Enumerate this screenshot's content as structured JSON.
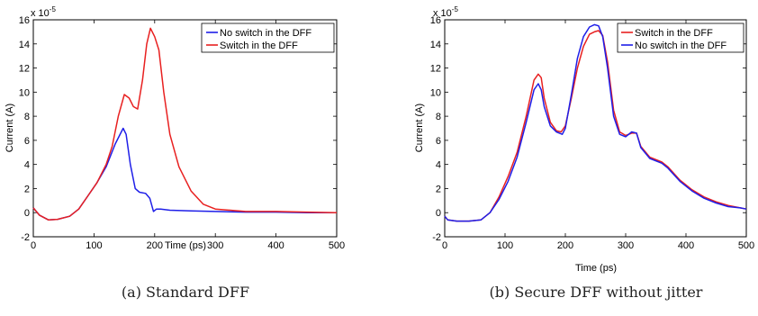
{
  "captions": [
    "(a) Standard DFF",
    "(b) Secure DFF without jitter"
  ],
  "chart_data": [
    {
      "type": "line",
      "xlabel": "Time (ps)",
      "ylabel": "Current (A)",
      "y_exponent": {
        "base": "x 10",
        "power": "-5"
      },
      "xlim": [
        0,
        500
      ],
      "ylim": [
        -2,
        16
      ],
      "xticks": [
        "0",
        "100",
        "200",
        "300",
        "400",
        "500"
      ],
      "yticks": [
        "-2",
        "0",
        "2",
        "4",
        "6",
        "8",
        "10",
        "12",
        "14",
        "16"
      ],
      "grid": false,
      "legend_position": "top-right",
      "series": [
        {
          "name": "No switch in the DFF",
          "color": "#1f1fe8",
          "x": [
            0,
            10,
            25,
            40,
            60,
            75,
            90,
            105,
            120,
            135,
            148,
            153,
            160,
            168,
            175,
            185,
            192,
            198,
            203,
            210,
            225,
            260,
            300,
            350,
            400,
            450,
            500
          ],
          "y": [
            0.4,
            -0.2,
            -0.6,
            -0.55,
            -0.3,
            0.3,
            1.4,
            2.5,
            3.8,
            5.7,
            7.0,
            6.5,
            4.0,
            2.0,
            1.7,
            1.6,
            1.2,
            0.1,
            0.3,
            0.3,
            0.2,
            0.15,
            0.1,
            0.05,
            0.05,
            0.0,
            0.0
          ]
        },
        {
          "name": "Switch in the DFF",
          "color": "#e82020",
          "x": [
            0,
            10,
            25,
            40,
            60,
            75,
            90,
            105,
            120,
            130,
            140,
            150,
            158,
            165,
            172,
            180,
            187,
            193,
            200,
            207,
            215,
            225,
            240,
            260,
            280,
            300,
            350,
            400,
            450,
            500
          ],
          "y": [
            0.4,
            -0.2,
            -0.6,
            -0.55,
            -0.3,
            0.3,
            1.4,
            2.5,
            4.0,
            5.5,
            8.0,
            9.8,
            9.5,
            8.8,
            8.6,
            11.0,
            14.0,
            15.3,
            14.6,
            13.5,
            10.0,
            6.5,
            3.8,
            1.8,
            0.7,
            0.3,
            0.1,
            0.1,
            0.05,
            0.0
          ]
        }
      ]
    },
    {
      "type": "line",
      "xlabel": "Time (ps)",
      "ylabel": "Current (A)",
      "y_exponent": {
        "base": "x 10",
        "power": "-5"
      },
      "xlim": [
        0,
        500
      ],
      "ylim": [
        -2,
        16
      ],
      "xticks": [
        "0",
        "100",
        "200",
        "300",
        "400",
        "500"
      ],
      "yticks": [
        "-2",
        "0",
        "2",
        "4",
        "6",
        "8",
        "10",
        "12",
        "14",
        "16"
      ],
      "grid": false,
      "legend_position": "top-right",
      "series": [
        {
          "name": "Switch in the DFF",
          "color": "#e82020",
          "x": [
            0,
            5,
            20,
            40,
            60,
            75,
            90,
            105,
            120,
            135,
            148,
            155,
            160,
            165,
            175,
            185,
            193,
            200,
            210,
            220,
            230,
            240,
            248,
            255,
            262,
            270,
            280,
            290,
            300,
            310,
            318,
            325,
            340,
            360,
            370,
            390,
            410,
            430,
            450,
            470,
            490,
            500
          ],
          "y": [
            -0.3,
            -0.6,
            -0.7,
            -0.7,
            -0.6,
            0.0,
            1.3,
            3.0,
            5.0,
            8.0,
            11.0,
            11.5,
            11.2,
            9.5,
            7.5,
            6.8,
            6.7,
            7.2,
            9.5,
            12.0,
            13.8,
            14.8,
            15.0,
            15.1,
            14.7,
            12.5,
            8.5,
            6.7,
            6.4,
            6.6,
            6.6,
            5.5,
            4.6,
            4.2,
            3.8,
            2.7,
            1.9,
            1.3,
            0.9,
            0.6,
            0.4,
            0.3
          ]
        },
        {
          "name": "No switch in the DFF",
          "color": "#1f1fe8",
          "x": [
            0,
            5,
            20,
            40,
            60,
            75,
            90,
            105,
            120,
            135,
            148,
            155,
            160,
            165,
            175,
            185,
            195,
            200,
            210,
            220,
            230,
            240,
            248,
            255,
            262,
            270,
            280,
            290,
            300,
            310,
            318,
            325,
            340,
            360,
            370,
            390,
            410,
            430,
            450,
            470,
            490,
            500
          ],
          "y": [
            -0.3,
            -0.6,
            -0.7,
            -0.7,
            -0.6,
            0.0,
            1.1,
            2.6,
            4.6,
            7.5,
            10.2,
            10.7,
            10.2,
            8.8,
            7.2,
            6.7,
            6.5,
            7.0,
            9.8,
            12.8,
            14.6,
            15.4,
            15.6,
            15.5,
            14.6,
            12.0,
            8.0,
            6.5,
            6.3,
            6.7,
            6.6,
            5.4,
            4.5,
            4.1,
            3.7,
            2.6,
            1.8,
            1.2,
            0.8,
            0.5,
            0.4,
            0.3
          ]
        }
      ]
    }
  ]
}
